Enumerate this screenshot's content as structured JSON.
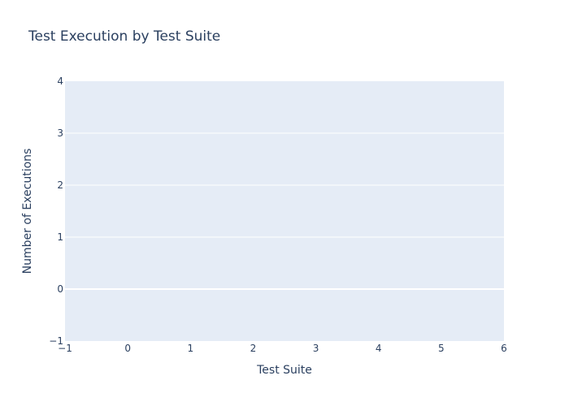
{
  "chart_data": {
    "type": "bar",
    "title": "Test Execution by Test Suite",
    "xlabel": "Test Suite",
    "ylabel": "Number of Executions",
    "xlim": [
      -1,
      6
    ],
    "ylim": [
      -1,
      4
    ],
    "x_ticks": [
      -1,
      0,
      1,
      2,
      3,
      4,
      5,
      6
    ],
    "y_ticks": [
      -1,
      0,
      1,
      2,
      3,
      4
    ],
    "x_tick_labels": [
      "−1",
      "0",
      "1",
      "2",
      "3",
      "4",
      "5",
      "6"
    ],
    "y_tick_labels": [
      "−1",
      "0",
      "1",
      "2",
      "3",
      "4"
    ],
    "categories": [],
    "values": [],
    "grid": true,
    "plot_background": "#e5ecf6",
    "grid_color": "#ffffff",
    "text_color": "#2a3f5f"
  }
}
